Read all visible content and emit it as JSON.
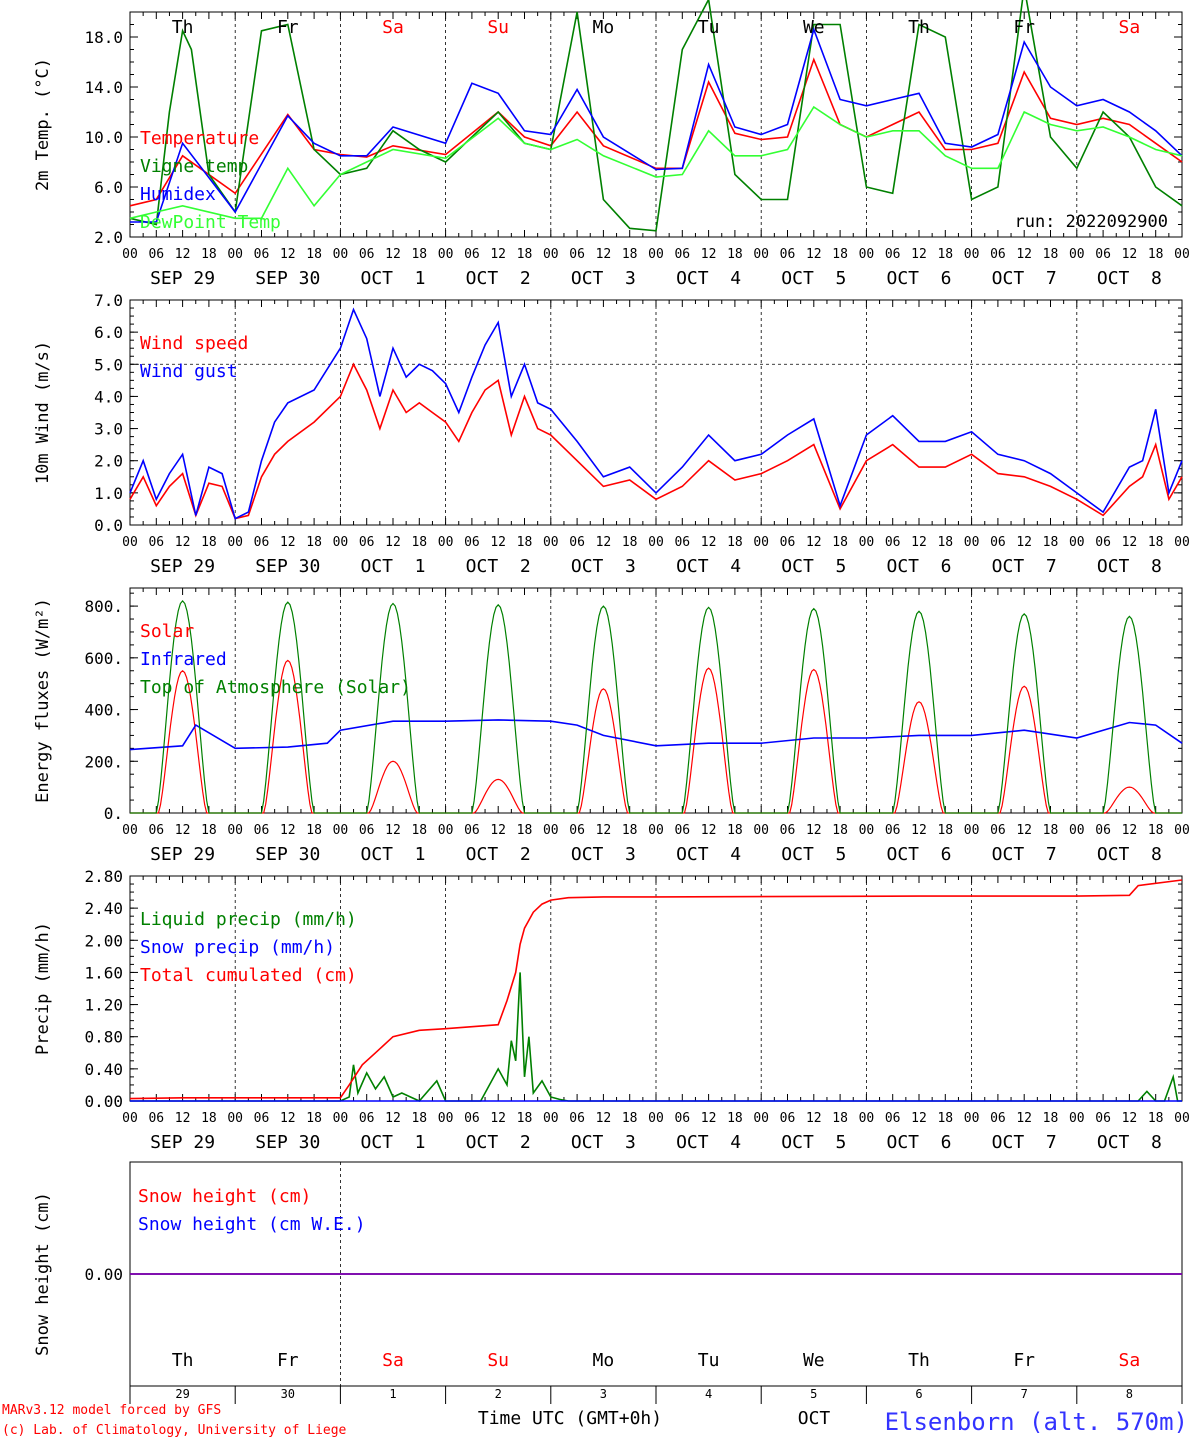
{
  "figure": {
    "run_label": "run: 2022092900",
    "credit_line1": "MARv3.12 model forced by GFS",
    "credit_line2": "(c) Lab. of Climatology, University of Liege",
    "time_axis_title": "Time UTC (GMT+0h)",
    "month_label": "OCT",
    "station_label": "Elsenborn (alt. 570m)",
    "colors": {
      "red": "#ff0000",
      "blue": "#0000ff",
      "green": "#008000",
      "light_green": "#33ff33",
      "purple": "#8000aa",
      "station": "#3333ff"
    }
  },
  "days": {
    "weekdays": [
      "Th",
      "Fr",
      "Sa",
      "Su",
      "Mo",
      "Tu",
      "We",
      "Th",
      "Fr",
      "Sa"
    ],
    "weekend_flags": [
      false,
      false,
      true,
      true,
      false,
      false,
      false,
      false,
      false,
      true
    ],
    "date_labels": [
      "SEP 29",
      "SEP 30",
      "OCT  1",
      "OCT  2",
      "OCT  3",
      "OCT  4",
      "OCT  5",
      "OCT  6",
      "OCT  7",
      "OCT  8"
    ],
    "day_numbers": [
      "29",
      "30",
      "1",
      "2",
      "3",
      "4",
      "5",
      "6",
      "7",
      "8"
    ],
    "hour_ticks": [
      "00",
      "06",
      "12",
      "18"
    ],
    "final_tick": "00"
  },
  "chart_data": [
    {
      "type": "line",
      "id": "temperature",
      "ylabel": "2m Temp. (°C)",
      "ylim": [
        2,
        20
      ],
      "yticks": [
        "2.0",
        "6.0",
        "10.0",
        "14.0",
        "18.0"
      ],
      "ytick_values": [
        2,
        6,
        10,
        14,
        18
      ],
      "x_unit": "hours since SEP 29 00 UTC",
      "series": [
        {
          "name": "Temperature",
          "color": "red",
          "x": [
            0,
            6,
            12,
            24,
            36,
            42,
            48,
            54,
            60,
            72,
            84,
            90,
            96,
            102,
            108,
            120,
            126,
            132,
            138,
            144,
            150,
            156,
            162,
            168,
            174,
            180,
            186,
            192,
            198,
            204,
            210,
            216,
            222,
            228,
            234,
            240
          ],
          "y": [
            4.5,
            5.0,
            8.5,
            5.5,
            11.8,
            9.0,
            8.6,
            8.4,
            9.3,
            8.6,
            12.0,
            10.0,
            9.3,
            12.0,
            9.3,
            7.5,
            7.5,
            14.4,
            10.3,
            9.8,
            10.0,
            16.2,
            11.0,
            10.0,
            11.0,
            12.0,
            9.0,
            9.0,
            9.5,
            15.2,
            11.5,
            11.0,
            11.5,
            11.0,
            9.5,
            8.0
          ]
        },
        {
          "name": "Vigne temp",
          "color": "green",
          "x": [
            0,
            6,
            9,
            12,
            14,
            18,
            24,
            30,
            36,
            42,
            48,
            54,
            60,
            66,
            72,
            84,
            90,
            96,
            102,
            108,
            114,
            120,
            126,
            132,
            138,
            144,
            150,
            156,
            162,
            168,
            174,
            180,
            186,
            192,
            198,
            204,
            210,
            216,
            222,
            228,
            234,
            240
          ],
          "y": [
            3.5,
            3.0,
            12.0,
            18.5,
            17.0,
            7.0,
            4.0,
            18.5,
            19.0,
            9.0,
            7.0,
            7.5,
            10.5,
            9.0,
            8.0,
            12.0,
            9.5,
            9.0,
            20.0,
            5.0,
            2.7,
            2.5,
            17.0,
            21.0,
            7.0,
            5.0,
            5.0,
            19.0,
            19.0,
            6.0,
            5.5,
            19.0,
            18.0,
            5.0,
            6.0,
            22.0,
            10.0,
            7.5,
            12.0,
            10.0,
            6.0,
            4.5
          ]
        },
        {
          "name": "Humidex",
          "color": "blue",
          "x": [
            0,
            6,
            12,
            24,
            36,
            42,
            48,
            54,
            60,
            72,
            78,
            84,
            90,
            96,
            102,
            108,
            120,
            126,
            132,
            138,
            144,
            150,
            156,
            162,
            168,
            174,
            180,
            186,
            192,
            198,
            204,
            210,
            216,
            222,
            228,
            234,
            240
          ],
          "y": [
            3.2,
            3.2,
            9.5,
            4.0,
            11.7,
            9.5,
            8.5,
            8.5,
            10.8,
            9.5,
            14.3,
            13.5,
            10.5,
            10.2,
            13.8,
            10.0,
            7.4,
            7.5,
            15.8,
            10.8,
            10.2,
            11.0,
            18.6,
            13.0,
            12.5,
            13.0,
            13.5,
            9.5,
            9.2,
            10.2,
            17.6,
            14.0,
            12.5,
            13.0,
            12.0,
            10.5,
            8.5
          ]
        },
        {
          "name": "DewPoint Temp",
          "color": "light_green",
          "x": [
            0,
            6,
            12,
            24,
            30,
            36,
            42,
            48,
            54,
            60,
            72,
            84,
            90,
            96,
            102,
            108,
            120,
            126,
            132,
            138,
            144,
            150,
            156,
            162,
            168,
            174,
            180,
            186,
            192,
            198,
            204,
            210,
            216,
            222,
            228,
            234,
            240
          ],
          "y": [
            3.5,
            4.0,
            4.5,
            3.5,
            3.5,
            7.5,
            4.5,
            7.0,
            8.0,
            9.0,
            8.3,
            11.5,
            9.5,
            9.0,
            9.8,
            8.5,
            6.8,
            7.0,
            10.5,
            8.5,
            8.5,
            9.0,
            12.4,
            11.0,
            10.0,
            10.5,
            10.5,
            8.5,
            7.5,
            7.5,
            12.0,
            11.0,
            10.5,
            10.8,
            10.0,
            9.0,
            8.5
          ]
        }
      ]
    },
    {
      "type": "line",
      "id": "wind",
      "ylabel": "10m Wind (m/s)",
      "ylim": [
        0,
        7
      ],
      "yticks": [
        "0.0",
        "1.0",
        "2.0",
        "3.0",
        "4.0",
        "5.0",
        "6.0",
        "7.0"
      ],
      "ytick_values": [
        0,
        1,
        2,
        3,
        4,
        5,
        6,
        7
      ],
      "reference_line": 5,
      "x_unit": "hours since SEP 29 00 UTC",
      "series": [
        {
          "name": "Wind speed",
          "color": "red",
          "x": [
            0,
            3,
            6,
            9,
            12,
            15,
            18,
            21,
            24,
            27,
            30,
            33,
            36,
            42,
            48,
            51,
            54,
            57,
            60,
            63,
            66,
            69,
            72,
            75,
            78,
            81,
            84,
            87,
            90,
            93,
            96,
            102,
            108,
            114,
            120,
            126,
            132,
            138,
            144,
            150,
            156,
            162,
            168,
            174,
            180,
            186,
            192,
            198,
            204,
            210,
            216,
            222,
            228,
            231,
            234,
            237,
            240
          ],
          "y": [
            0.8,
            1.5,
            0.6,
            1.2,
            1.6,
            0.3,
            1.3,
            1.2,
            0.2,
            0.3,
            1.5,
            2.2,
            2.6,
            3.2,
            4.0,
            5.0,
            4.2,
            3.0,
            4.2,
            3.5,
            3.8,
            3.5,
            3.2,
            2.6,
            3.5,
            4.2,
            4.5,
            2.8,
            4.0,
            3.0,
            2.8,
            2.0,
            1.2,
            1.4,
            0.8,
            1.2,
            2.0,
            1.4,
            1.6,
            2.0,
            2.5,
            0.5,
            2.0,
            2.5,
            1.8,
            1.8,
            2.2,
            1.6,
            1.5,
            1.2,
            0.8,
            0.3,
            1.2,
            1.5,
            2.5,
            0.8,
            1.5
          ]
        },
        {
          "name": "Wind gust",
          "color": "blue",
          "x": [
            0,
            3,
            6,
            9,
            12,
            15,
            18,
            21,
            24,
            27,
            30,
            33,
            36,
            42,
            48,
            51,
            54,
            57,
            60,
            63,
            66,
            69,
            72,
            75,
            78,
            81,
            84,
            87,
            90,
            93,
            96,
            102,
            108,
            114,
            120,
            126,
            132,
            138,
            144,
            150,
            156,
            162,
            168,
            174,
            180,
            186,
            192,
            198,
            204,
            210,
            216,
            222,
            228,
            231,
            234,
            237,
            240
          ],
          "y": [
            1.0,
            2.0,
            0.8,
            1.6,
            2.2,
            0.3,
            1.8,
            1.6,
            0.2,
            0.4,
            2.0,
            3.2,
            3.8,
            4.2,
            5.5,
            6.7,
            5.8,
            4.0,
            5.5,
            4.6,
            5.0,
            4.8,
            4.4,
            3.5,
            4.6,
            5.6,
            6.3,
            4.0,
            5.0,
            3.8,
            3.6,
            2.6,
            1.5,
            1.8,
            1.0,
            1.8,
            2.8,
            2.0,
            2.2,
            2.8,
            3.3,
            0.6,
            2.8,
            3.4,
            2.6,
            2.6,
            2.9,
            2.2,
            2.0,
            1.6,
            1.0,
            0.4,
            1.8,
            2.0,
            3.6,
            1.0,
            2.0
          ]
        }
      ]
    },
    {
      "type": "line",
      "id": "energy",
      "ylabel": "Energy fluxes (W/m²)",
      "ylim": [
        0,
        870
      ],
      "yticks": [
        "0.",
        "200.",
        "400.",
        "600.",
        "800."
      ],
      "ytick_values": [
        0,
        200,
        400,
        600,
        800
      ],
      "x_unit": "hours since SEP 29 00 UTC",
      "series": [
        {
          "name": "Solar",
          "color": "red",
          "kind": "daily_bell",
          "sunrise_hour": 6.5,
          "sunset_hour": 17.5,
          "daily_peaks": [
            550,
            590,
            200,
            130,
            480,
            560,
            555,
            430,
            490,
            100
          ]
        },
        {
          "name": "Infrared",
          "color": "blue",
          "x": [
            0,
            12,
            15,
            24,
            36,
            45,
            48,
            60,
            72,
            84,
            96,
            102,
            108,
            120,
            132,
            144,
            156,
            168,
            180,
            192,
            204,
            216,
            228,
            234,
            240
          ],
          "y": [
            245,
            260,
            340,
            250,
            255,
            270,
            320,
            355,
            355,
            360,
            355,
            340,
            300,
            260,
            270,
            270,
            290,
            290,
            300,
            300,
            320,
            290,
            350,
            340,
            270
          ]
        },
        {
          "name": "Top of Atmosphere (Solar)",
          "color": "green",
          "kind": "daily_bell",
          "sunrise_hour": 6.0,
          "sunset_hour": 18.0,
          "daily_peaks": [
            820,
            815,
            810,
            805,
            800,
            795,
            790,
            780,
            770,
            760
          ]
        }
      ]
    },
    {
      "type": "line",
      "id": "precip",
      "ylabel": "Precip (mm/h)",
      "ylim": [
        0,
        2.8
      ],
      "yticks": [
        "0.00",
        "0.40",
        "0.80",
        "1.20",
        "1.60",
        "2.00",
        "2.40",
        "2.80"
      ],
      "ytick_values": [
        0,
        0.4,
        0.8,
        1.2,
        1.6,
        2.0,
        2.4,
        2.8
      ],
      "x_unit": "hours since SEP 29 00 UTC",
      "series": [
        {
          "name": "Liquid precip (mm/h)",
          "color": "green",
          "x": [
            0,
            48,
            50,
            51,
            52,
            54,
            56,
            58,
            60,
            62,
            64,
            66,
            70,
            72,
            80,
            84,
            86,
            87,
            88,
            89,
            90,
            91,
            92,
            94,
            96,
            98,
            100,
            104,
            230,
            232,
            234,
            236,
            238,
            239,
            240
          ],
          "y": [
            0,
            0,
            0.05,
            0.45,
            0.1,
            0.35,
            0.15,
            0.3,
            0.05,
            0.1,
            0.05,
            0,
            0.25,
            0,
            0,
            0.4,
            0.2,
            0.75,
            0.5,
            1.6,
            0.3,
            0.8,
            0.1,
            0.25,
            0.05,
            0.02,
            0,
            0,
            0,
            0.12,
            0,
            0,
            0.3,
            0,
            0
          ]
        },
        {
          "name": "Snow precip (mm/h)",
          "color": "blue",
          "x": [
            0,
            240
          ],
          "y": [
            0,
            0
          ]
        },
        {
          "name": "Total cumulated (cm)",
          "color": "red",
          "x": [
            0,
            12,
            48,
            50,
            53,
            56,
            60,
            66,
            72,
            84,
            86,
            88,
            89,
            90,
            91,
            92,
            94,
            96,
            100,
            108,
            120,
            180,
            216,
            228,
            230,
            240
          ],
          "y": [
            0.03,
            0.04,
            0.04,
            0.2,
            0.45,
            0.6,
            0.8,
            0.88,
            0.9,
            0.95,
            1.25,
            1.6,
            1.95,
            2.15,
            2.25,
            2.35,
            2.45,
            2.5,
            2.53,
            2.54,
            2.54,
            2.55,
            2.55,
            2.56,
            2.68,
            2.75
          ]
        }
      ]
    },
    {
      "type": "line",
      "id": "snow",
      "ylabel": "Snow height (cm)",
      "ylim": [
        -1,
        1
      ],
      "yticks": [
        "0.00"
      ],
      "ytick_values": [
        0
      ],
      "x_unit": "hours since SEP 29 00 UTC",
      "series": [
        {
          "name": "Snow height (cm)",
          "color": "red",
          "x": [
            0,
            240
          ],
          "y": [
            0,
            0
          ]
        },
        {
          "name": "Snow height (cm W.E.)",
          "color": "blue",
          "x": [
            0,
            240
          ],
          "y": [
            0,
            0
          ]
        }
      ]
    }
  ]
}
